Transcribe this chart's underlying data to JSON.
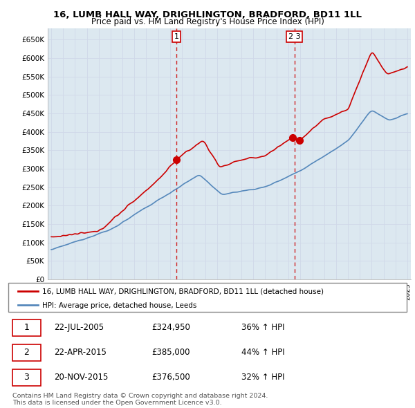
{
  "title": "16, LUMB HALL WAY, DRIGHLINGTON, BRADFORD, BD11 1LL",
  "subtitle": "Price paid vs. HM Land Registry's House Price Index (HPI)",
  "ytick_labels": [
    "£0",
    "£50K",
    "£100K",
    "£150K",
    "£200K",
    "£250K",
    "£300K",
    "£350K",
    "£400K",
    "£450K",
    "£500K",
    "£550K",
    "£600K",
    "£650K"
  ],
  "yticks": [
    0,
    50000,
    100000,
    150000,
    200000,
    250000,
    300000,
    350000,
    400000,
    450000,
    500000,
    550000,
    600000,
    650000
  ],
  "ylim": [
    0,
    680000
  ],
  "line1_color": "#cc0000",
  "line2_color": "#5588bb",
  "grid_color": "#d0d8e8",
  "bg_color": "#dce8f0",
  "legend_label1": "16, LUMB HALL WAY, DRIGHLINGTON, BRADFORD, BD11 1LL (detached house)",
  "legend_label2": "HPI: Average price, detached house, Leeds",
  "vline_years": [
    2005.55,
    2015.5
  ],
  "transaction_years": [
    2005.55,
    2015.31,
    2015.9
  ],
  "transaction_prices": [
    324950,
    385000,
    376500
  ],
  "footer": "Contains HM Land Registry data © Crown copyright and database right 2024.\nThis data is licensed under the Open Government Licence v3.0.",
  "table_rows": [
    [
      "1",
      "22-JUL-2005",
      "£324,950",
      "36% ↑ HPI"
    ],
    [
      "2",
      "22-APR-2015",
      "£385,000",
      "44% ↑ HPI"
    ],
    [
      "3",
      "20-NOV-2015",
      "£376,500",
      "32% ↑ HPI"
    ]
  ]
}
